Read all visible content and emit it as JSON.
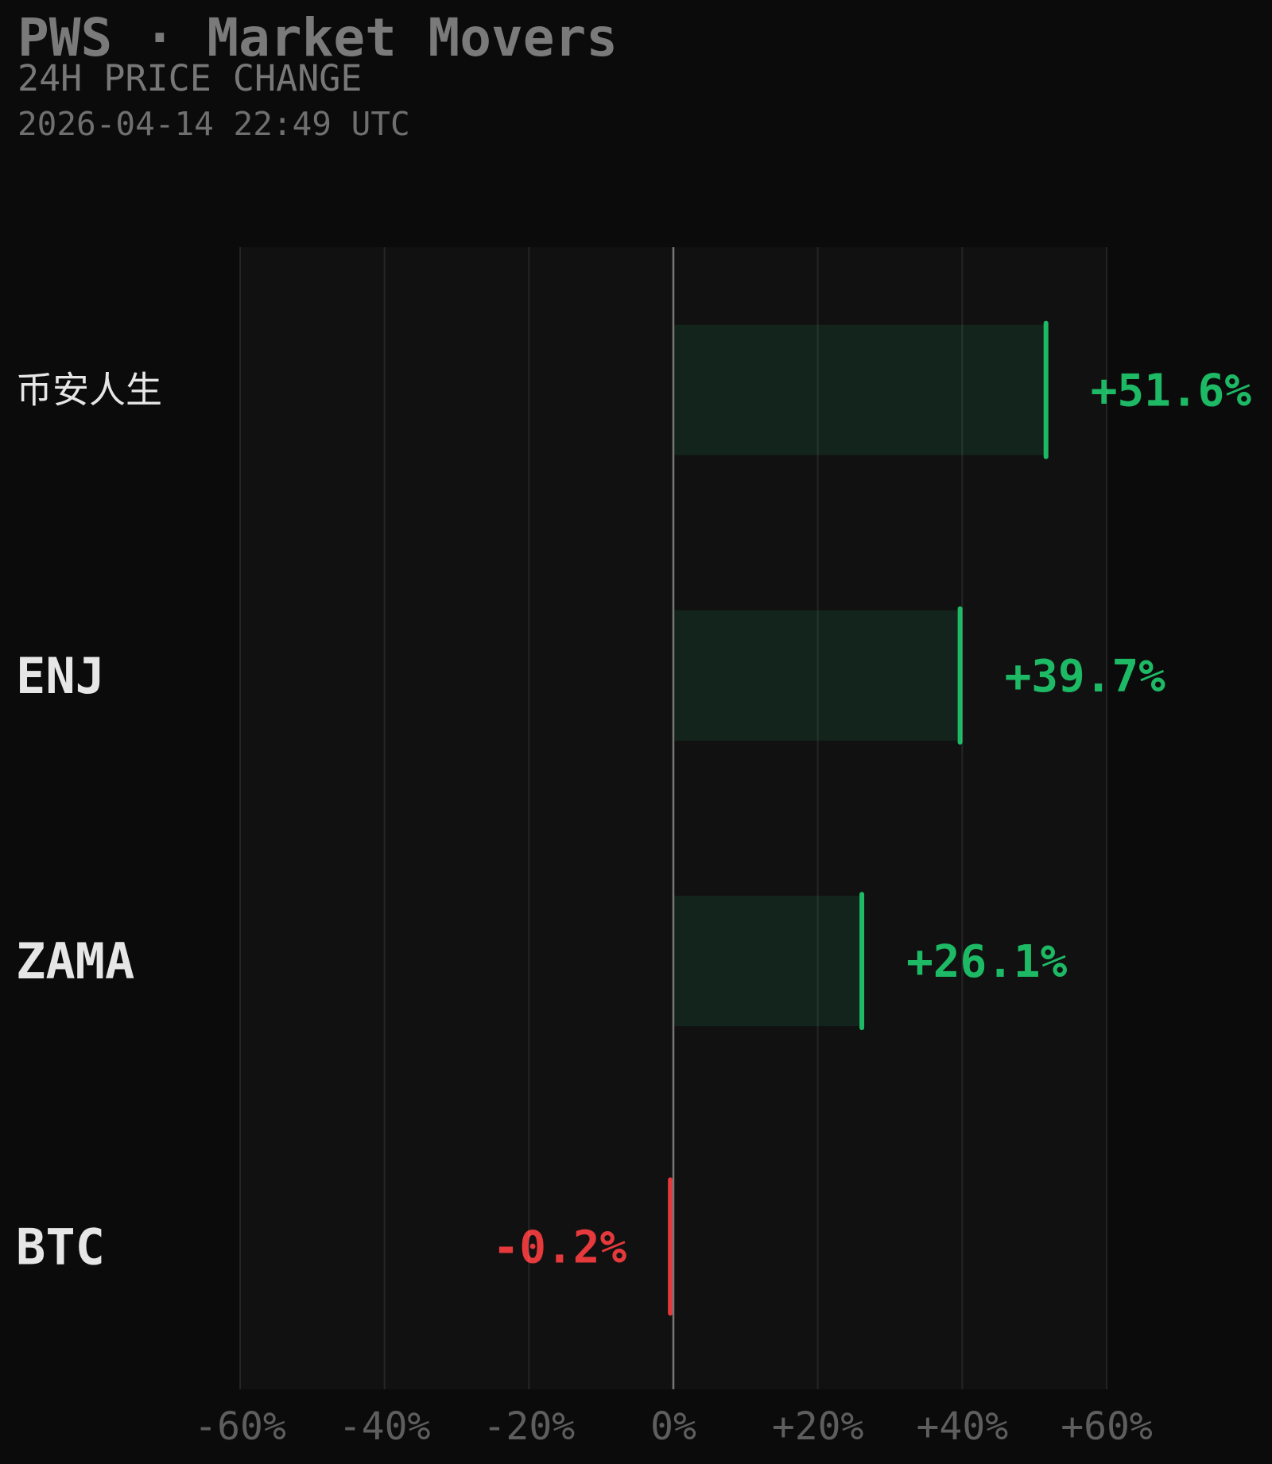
{
  "header": {
    "title": "PWS · Market Movers",
    "subtitle": "24H PRICE CHANGE",
    "timestamp": "2026-04-14 22:49 UTC"
  },
  "colors": {
    "background": "#0b0b0b",
    "plot_background": "#111111",
    "positive": "#1db965",
    "positive_fill": "#12241b",
    "negative": "#e5393b",
    "grid": "#222222",
    "zero_line": "#777777"
  },
  "chart_data": {
    "type": "bar",
    "orientation": "horizontal",
    "categories": [
      "币安人生",
      "ENJ",
      "ZAMA",
      "BTC"
    ],
    "values": [
      51.6,
      39.7,
      26.1,
      -0.2
    ],
    "value_labels": [
      "+51.6%",
      "+39.7%",
      "+26.1%",
      "-0.2%"
    ],
    "xlim": [
      -60,
      60
    ],
    "xticks": [
      -60,
      -40,
      -20,
      0,
      20,
      40,
      60
    ],
    "xtick_labels": [
      "-60%",
      "-40%",
      "-20%",
      "0%",
      "+20%",
      "+40%",
      "+60%"
    ],
    "grid": true,
    "legend": "none"
  }
}
